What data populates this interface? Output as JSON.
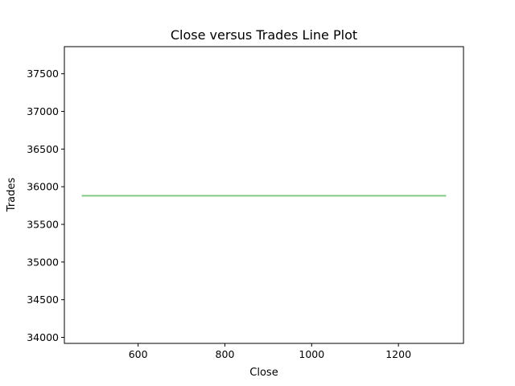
{
  "chart_data": {
    "type": "line",
    "title": "Close versus Trades Line Plot",
    "xlabel": "Close",
    "ylabel": "Trades",
    "xlim": [
      430,
      1350
    ],
    "ylim": [
      33920,
      37860
    ],
    "xticks": [
      600,
      800,
      1000,
      1200
    ],
    "yticks": [
      34000,
      34500,
      35000,
      35500,
      36000,
      36500,
      37000,
      37500
    ],
    "grid": false,
    "series": [
      {
        "color": "#7dc67e",
        "x": [
          470,
          600,
          745,
          840,
          1070,
          1310
        ],
        "y": [
          35880,
          35880,
          35880,
          35880,
          35880,
          35880
        ]
      }
    ]
  }
}
